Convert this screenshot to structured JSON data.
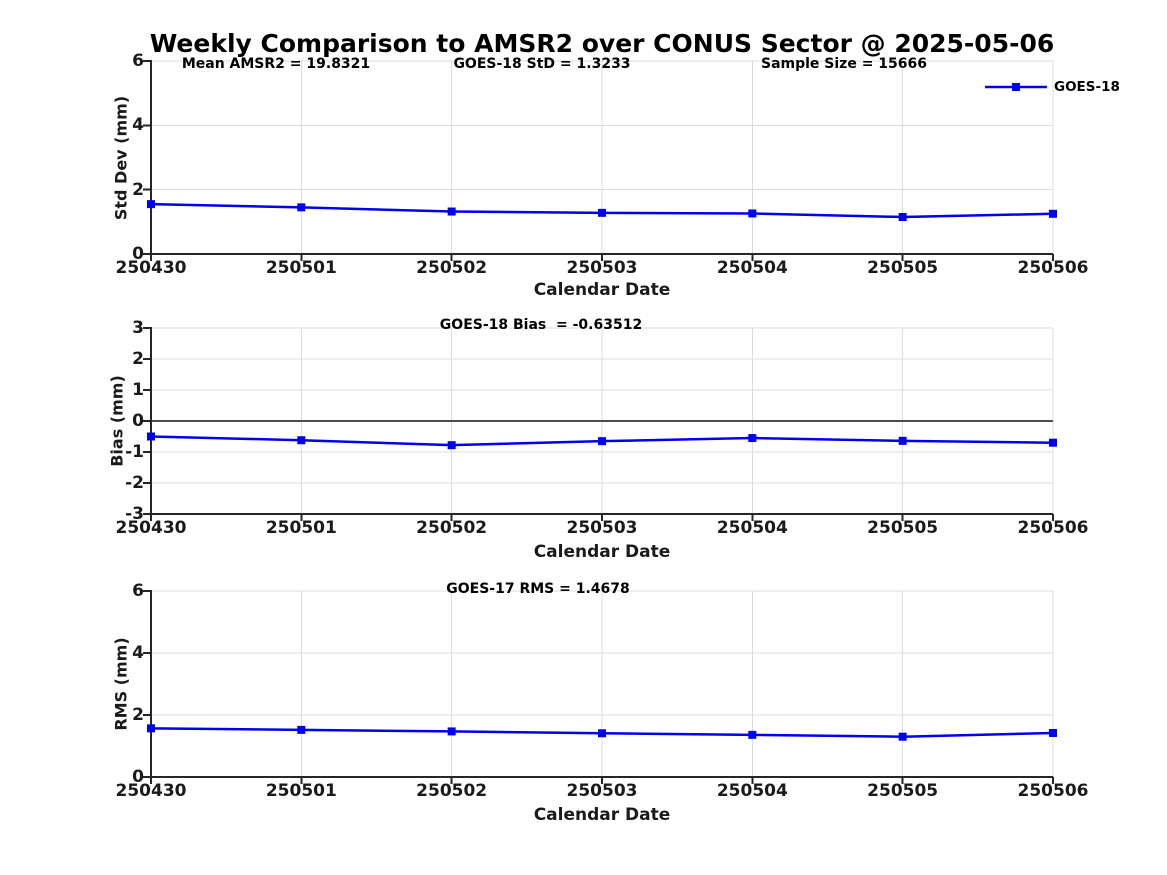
{
  "figure": {
    "title": "Weekly Comparison to AMSR2 over CONUS Sector @ 2025-05-06",
    "background": "#ffffff"
  },
  "colors": {
    "series_line": "#0000eb",
    "marker_fill": "#0000f5",
    "grid": "#dcdcdc",
    "axis": "#262626",
    "zero_line": "#4d4d4d",
    "text": "#1a1a1a"
  },
  "legend": {
    "label": "GOES-18",
    "position": "top-right"
  },
  "chart_data": [
    {
      "type": "line",
      "name": "std-dev-panel",
      "ylabel": "Std Dev (mm)",
      "xlabel": "Calendar Date",
      "categories": [
        "250430",
        "250501",
        "250502",
        "250503",
        "250504",
        "250505",
        "250506"
      ],
      "series": [
        {
          "name": "GOES-18",
          "values": [
            1.55,
            1.45,
            1.32,
            1.28,
            1.26,
            1.15,
            1.25
          ]
        }
      ],
      "ylim": [
        0,
        6
      ],
      "yticks": [
        "0",
        "2",
        "4",
        "6"
      ],
      "grid": true,
      "zero_line": false,
      "annotations": [
        {
          "text": "Mean AMSR2 = 19.8321"
        },
        {
          "text": "GOES-18 StD = 1.3233"
        },
        {
          "text": "Sample Size = 15666"
        }
      ]
    },
    {
      "type": "line",
      "name": "bias-panel",
      "ylabel": "Bias (mm)",
      "xlabel": "Calendar Date",
      "categories": [
        "250430",
        "250501",
        "250502",
        "250503",
        "250504",
        "250505",
        "250506"
      ],
      "series": [
        {
          "name": "GOES-18",
          "values": [
            -0.5,
            -0.62,
            -0.78,
            -0.65,
            -0.55,
            -0.64,
            -0.7
          ]
        }
      ],
      "ylim": [
        -3,
        3
      ],
      "yticks": [
        "-3",
        "-2",
        "-1",
        "0",
        "1",
        "2",
        "3"
      ],
      "grid": true,
      "zero_line": true,
      "annotations": [
        {
          "text": "GOES-18 Bias  = -0.63512"
        }
      ]
    },
    {
      "type": "line",
      "name": "rms-panel",
      "ylabel": "RMS (mm)",
      "xlabel": "Calendar Date",
      "categories": [
        "250430",
        "250501",
        "250502",
        "250503",
        "250504",
        "250505",
        "250506"
      ],
      "series": [
        {
          "name": "GOES-18",
          "values": [
            1.57,
            1.52,
            1.47,
            1.41,
            1.36,
            1.3,
            1.42
          ]
        }
      ],
      "ylim": [
        0,
        6
      ],
      "yticks": [
        "0",
        "2",
        "4",
        "6"
      ],
      "grid": true,
      "zero_line": false,
      "annotations": [
        {
          "text": "GOES-17 RMS = 1.4678"
        }
      ]
    }
  ]
}
